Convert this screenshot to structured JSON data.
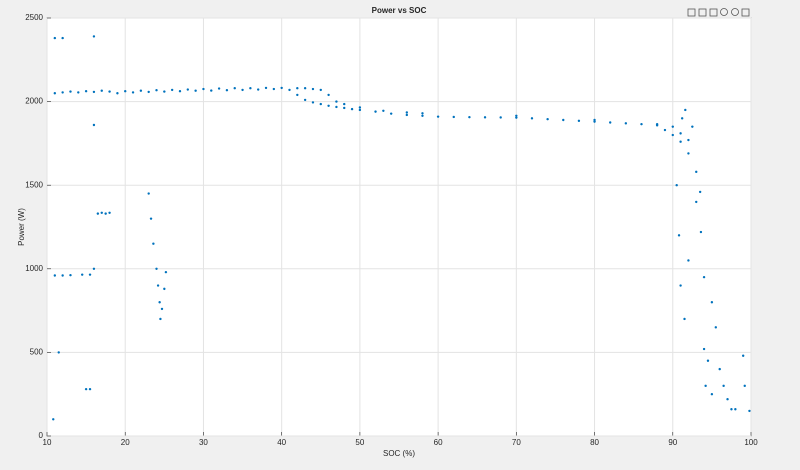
{
  "chart_data": {
    "type": "scatter",
    "title": "Power vs SOC",
    "xlabel": "SOC (%)",
    "ylabel": "Power (W)",
    "color": "#0072bd",
    "grid": true,
    "xlim": [
      10,
      100
    ],
    "xticks": [
      10,
      20,
      30,
      40,
      50,
      60,
      70,
      80,
      90,
      100
    ],
    "ylim": [
      0,
      2500
    ],
    "yticks": [
      0,
      500,
      1000,
      1500,
      2000,
      2500
    ],
    "x": [
      11,
      12,
      13,
      14,
      15,
      16,
      17,
      18,
      19,
      20,
      21,
      22,
      23,
      24,
      25,
      26,
      27,
      28,
      29,
      30,
      31,
      32,
      33,
      34,
      35,
      36,
      37,
      38,
      39,
      40,
      41,
      42,
      43,
      44,
      45,
      46,
      47,
      48,
      49,
      50,
      52,
      54,
      56,
      58,
      60,
      62,
      64,
      66,
      68,
      70,
      72,
      74,
      76,
      78,
      80,
      82,
      84,
      86,
      88,
      89,
      90,
      91,
      92,
      93,
      93.5,
      42,
      43,
      44,
      45,
      46,
      47,
      48,
      50,
      53,
      56,
      58,
      70,
      80,
      88,
      90,
      91,
      92,
      16.5,
      17,
      17.5,
      18,
      11,
      12,
      13,
      14.5,
      15.5,
      15,
      15.5,
      23,
      23.3,
      23.6,
      24,
      24.2,
      24.4,
      24.5,
      24.7,
      25,
      25.2,
      11,
      12,
      16,
      16,
      16,
      11.5,
      10.8,
      90.5,
      90.8,
      91,
      91.5,
      92,
      93,
      93.6,
      94,
      94,
      94.5,
      95,
      95.5,
      96,
      96.5,
      97,
      97.5,
      98,
      99,
      99.2,
      99.8,
      94.2,
      95,
      91.2,
      91.6,
      92.5
    ],
    "values": [
      2050,
      2055,
      2060,
      2055,
      2062,
      2058,
      2065,
      2060,
      2050,
      2062,
      2055,
      2065,
      2058,
      2068,
      2060,
      2070,
      2062,
      2072,
      2065,
      2075,
      2066,
      2078,
      2068,
      2080,
      2070,
      2080,
      2072,
      2082,
      2075,
      2082,
      2070,
      2040,
      2010,
      1995,
      1985,
      1975,
      1968,
      1962,
      1955,
      1950,
      1940,
      1928,
      1920,
      1915,
      1910,
      1908,
      1907,
      1906,
      1905,
      1904,
      1900,
      1895,
      1890,
      1885,
      1880,
      1875,
      1870,
      1865,
      1858,
      1830,
      1800,
      1760,
      1690,
      1580,
      1460,
      2080,
      2080,
      2075,
      2070,
      2040,
      2000,
      1985,
      1965,
      1945,
      1935,
      1930,
      1915,
      1890,
      1865,
      1850,
      1810,
      1770,
      1330,
      1335,
      1330,
      1335,
      960,
      960,
      962,
      965,
      965,
      280,
      280,
      1450,
      1300,
      1150,
      1000,
      900,
      800,
      700,
      760,
      880,
      980,
      2380,
      2380,
      2390,
      1860,
      1000,
      500,
      100,
      1500,
      1200,
      900,
      700,
      1050,
      1400,
      1220,
      950,
      520,
      450,
      800,
      650,
      400,
      300,
      220,
      160,
      160,
      480,
      300,
      150,
      300,
      250,
      1900,
      1950,
      1850
    ]
  }
}
